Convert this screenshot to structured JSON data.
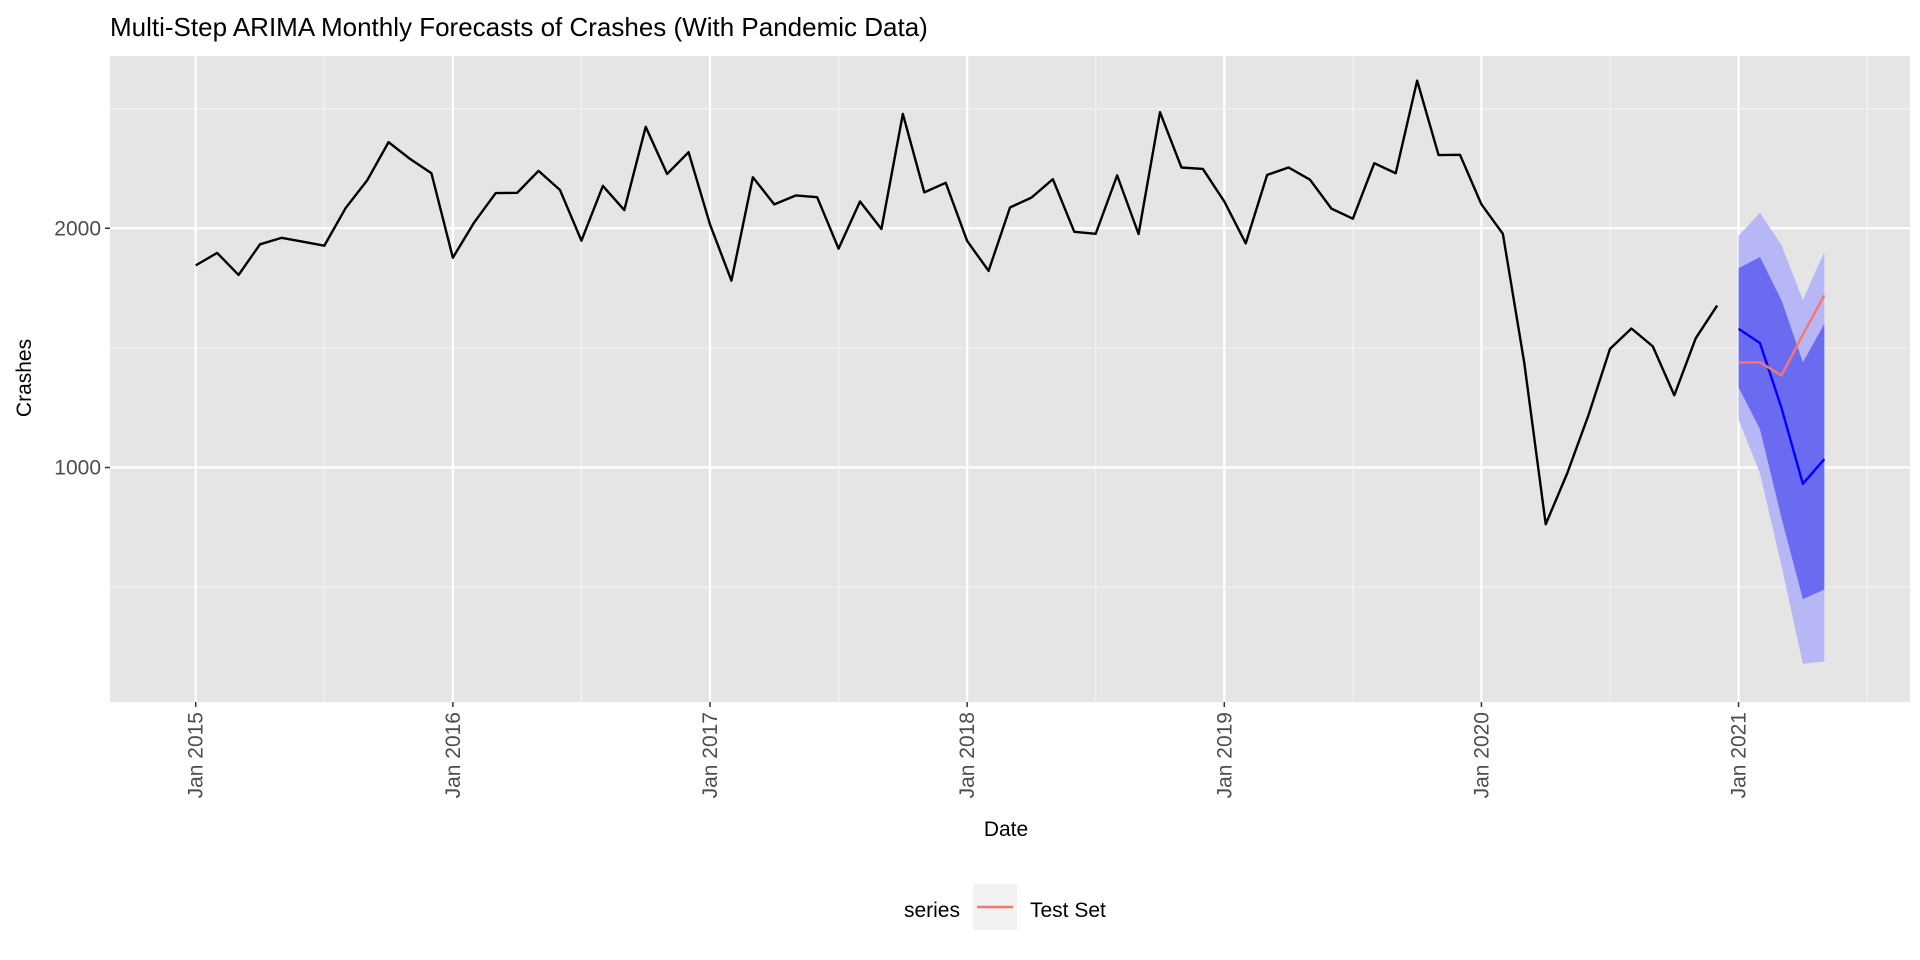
{
  "chart_data": {
    "type": "line",
    "title": "Multi-Step ARIMA Monthly Forecasts of Crashes (With Pandemic Data)",
    "xlabel": "Date",
    "ylabel": "Crashes",
    "x_range": [
      "2014-09",
      "2021-09"
    ],
    "ylim": [
      20,
      2720
    ],
    "y_ticks": [
      1000,
      2000
    ],
    "y_minor_ticks": [
      500,
      1500,
      2500
    ],
    "x_ticks": [
      {
        "date": "2015-01",
        "label": "Jan 2015"
      },
      {
        "date": "2016-01",
        "label": "Jan 2016"
      },
      {
        "date": "2017-01",
        "label": "Jan 2017"
      },
      {
        "date": "2018-01",
        "label": "Jan 2018"
      },
      {
        "date": "2019-01",
        "label": "Jan 2019"
      },
      {
        "date": "2020-01",
        "label": "Jan 2020"
      },
      {
        "date": "2021-01",
        "label": "Jan 2021"
      }
    ],
    "grid": true,
    "legend": {
      "position": "bottom",
      "title": "series",
      "entries": [
        {
          "label": "Test Set",
          "color": "#f8766d"
        }
      ]
    },
    "series": [
      {
        "color": "#000000",
        "x": [
          "2015-01",
          "2015-02",
          "2015-03",
          "2015-04",
          "2015-05",
          "2015-06",
          "2015-07",
          "2015-08",
          "2015-09",
          "2015-10",
          "2015-11",
          "2015-12",
          "2016-01",
          "2016-02",
          "2016-03",
          "2016-04",
          "2016-05",
          "2016-06",
          "2016-07",
          "2016-08",
          "2016-09",
          "2016-10",
          "2016-11",
          "2016-12",
          "2017-01",
          "2017-02",
          "2017-03",
          "2017-04",
          "2017-05",
          "2017-06",
          "2017-07",
          "2017-08",
          "2017-09",
          "2017-10",
          "2017-11",
          "2017-12",
          "2018-01",
          "2018-02",
          "2018-03",
          "2018-04",
          "2018-05",
          "2018-06",
          "2018-07",
          "2018-08",
          "2018-09",
          "2018-10",
          "2018-11",
          "2018-12",
          "2019-01",
          "2019-02",
          "2019-03",
          "2019-04",
          "2019-05",
          "2019-06",
          "2019-07",
          "2019-08",
          "2019-09",
          "2019-10",
          "2019-11",
          "2019-12",
          "2020-01",
          "2020-02",
          "2020-03",
          "2020-04",
          "2020-05",
          "2020-06",
          "2020-07",
          "2020-08",
          "2020-09",
          "2020-10",
          "2020-11",
          "2020-12"
        ],
        "values": [
          1845,
          1897,
          1805,
          1933,
          1960,
          1944,
          1927,
          2085,
          2200,
          2360,
          2290,
          2230,
          1877,
          2025,
          2147,
          2148,
          2240,
          2160,
          1948,
          2177,
          2076,
          2424,
          2227,
          2318,
          2016,
          1781,
          2213,
          2100,
          2137,
          2130,
          1915,
          2112,
          1997,
          2478,
          2150,
          2190,
          1947,
          1822,
          2087,
          2128,
          2205,
          1985,
          1977,
          2221,
          1976,
          2485,
          2254,
          2248,
          2112,
          1937,
          2223,
          2254,
          2203,
          2082,
          2040,
          2272,
          2230,
          2617,
          2306,
          2307,
          2100,
          1977,
          1437,
          763,
          975,
          1220,
          1496,
          1581,
          1506,
          1302,
          1540,
          1677
        ]
      },
      {
        "color": "#0000ff",
        "x": [
          "2021-01",
          "2021-02",
          "2021-03",
          "2021-04",
          "2021-05"
        ],
        "values": [
          1580,
          1520,
          1250,
          932,
          1035
        ],
        "interval_80": {
          "lower": [
            1335,
            1160,
            790,
            450,
            490
          ],
          "upper": [
            1833,
            1880,
            1700,
            1440,
            1600
          ],
          "color": "#6b6bf2"
        },
        "interval_95": {
          "lower": [
            1200,
            975,
            590,
            180,
            190
          ],
          "upper": [
            1968,
            2065,
            1930,
            1700,
            1900
          ],
          "color": "#b7b7f5"
        }
      },
      {
        "name": "Test Set",
        "color": "#f8766d",
        "x": [
          "2021-01",
          "2021-02",
          "2021-03",
          "2021-04",
          "2021-05"
        ],
        "values": [
          1438,
          1440,
          1385,
          1555,
          1720
        ]
      }
    ]
  }
}
